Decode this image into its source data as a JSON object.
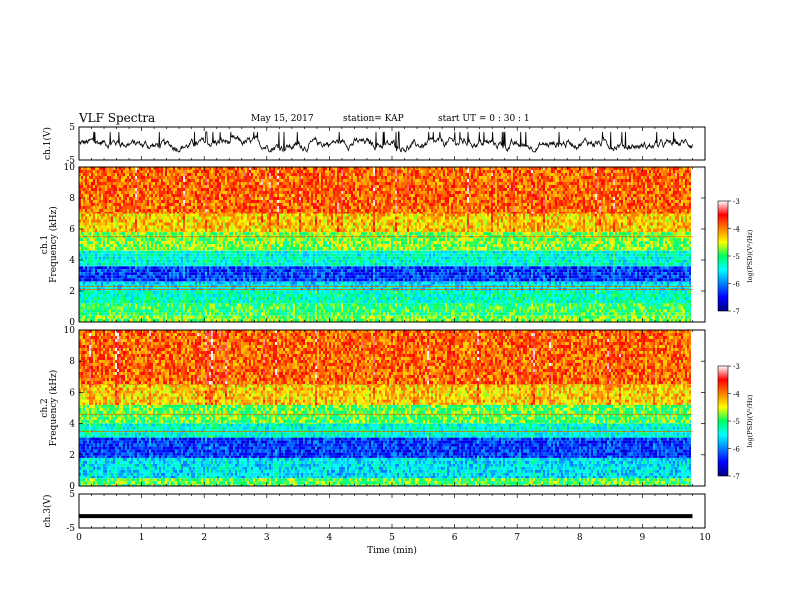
{
  "header": {
    "title": "VLF Spectra",
    "date": "May 15, 2017",
    "station": "station= KAP",
    "start": "start  UT =   0 : 30 : 1"
  },
  "chart_data": [
    {
      "type": "line",
      "id": "ch1-waveform",
      "ylabel": "ch.1(V)",
      "ylim": [
        -5,
        5
      ],
      "yticks": [
        -5,
        5
      ],
      "xlim": [
        0,
        10
      ],
      "series": [
        {
          "color": "#000000",
          "x_range": [
            0,
            9.8
          ],
          "mean": -0.2,
          "amplitude_range": [
            -2.5,
            3.5
          ],
          "style": "noisy trace"
        }
      ]
    },
    {
      "type": "heatmap",
      "id": "ch1-spectrogram",
      "ylabel": "ch.1\nFrequency (kHz)",
      "ylim": [
        0,
        10
      ],
      "yticks": [
        0,
        2,
        4,
        6,
        8,
        10
      ],
      "xlim": [
        0,
        10
      ],
      "data_x_range": [
        0,
        9.8
      ],
      "colorbar": {
        "label": "log(PSD)(V²/Hz)",
        "range": [
          -7,
          -3
        ],
        "ticks": [
          -3,
          -4,
          -5,
          -6,
          -7
        ]
      },
      "bands": [
        {
          "f": [
            0.0,
            0.4
          ],
          "logpsd": -4.8
        },
        {
          "f": [
            0.4,
            1.2
          ],
          "logpsd": -5.0
        },
        {
          "f": [
            1.2,
            2.0
          ],
          "logpsd": -5.3
        },
        {
          "f": [
            2.0,
            2.6
          ],
          "logpsd": -5.6
        },
        {
          "f": [
            2.6,
            3.6
          ],
          "logpsd": -6.3
        },
        {
          "f": [
            3.6,
            4.6
          ],
          "logpsd": -5.4
        },
        {
          "f": [
            4.6,
            5.8
          ],
          "logpsd": -4.8
        },
        {
          "f": [
            5.8,
            7.0
          ],
          "logpsd": -4.3
        },
        {
          "f": [
            7.0,
            10.0
          ],
          "logpsd": -3.9
        }
      ],
      "lines_khz": [
        5.5,
        2.3,
        2.1
      ]
    },
    {
      "type": "heatmap",
      "id": "ch2-spectrogram",
      "ylabel": "ch.2\nFrequency (kHz)",
      "ylim": [
        0,
        10
      ],
      "yticks": [
        0,
        2,
        4,
        6,
        8,
        10
      ],
      "xlim": [
        0,
        10
      ],
      "data_x_range": [
        0,
        9.8
      ],
      "colorbar": {
        "label": "log(PSD)(V²/Hz)",
        "range": [
          -7,
          -3
        ],
        "ticks": [
          -3,
          -4,
          -5,
          -6,
          -7
        ]
      },
      "bands": [
        {
          "f": [
            0.0,
            0.5
          ],
          "logpsd": -4.9
        },
        {
          "f": [
            0.5,
            1.8
          ],
          "logpsd": -5.6
        },
        {
          "f": [
            1.8,
            3.1
          ],
          "logpsd": -6.3
        },
        {
          "f": [
            3.1,
            4.0
          ],
          "logpsd": -5.4
        },
        {
          "f": [
            4.0,
            5.2
          ],
          "logpsd": -4.9
        },
        {
          "f": [
            5.2,
            6.5
          ],
          "logpsd": -4.3
        },
        {
          "f": [
            6.5,
            10.0
          ],
          "logpsd": -3.9
        }
      ],
      "lines_khz": [
        4.6,
        3.5
      ]
    },
    {
      "type": "line",
      "id": "ch3-waveform",
      "ylabel": "ch.3(V)",
      "ylim": [
        -5,
        5
      ],
      "yticks": [
        -5,
        5
      ],
      "xlim": [
        0,
        10
      ],
      "xticks": [
        0,
        1,
        2,
        3,
        4,
        5,
        6,
        7,
        8,
        9,
        10
      ],
      "xlabel": "Time (min)",
      "series": [
        {
          "color": "#000000",
          "x": [
            0,
            9.8
          ],
          "y": [
            -1.5,
            -1.5
          ]
        }
      ]
    }
  ]
}
